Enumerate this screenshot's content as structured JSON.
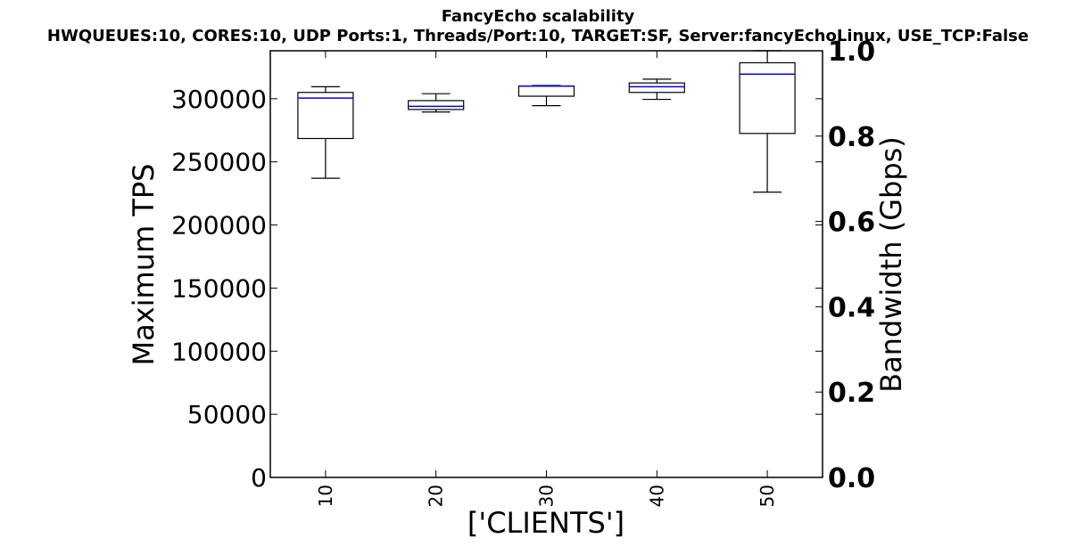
{
  "chart_data": {
    "type": "box",
    "title": "FancyEcho scalability",
    "subtitle": "HWQUEUES:10, CORES:10, UDP Ports:1, Threads/Port:10, TARGET:SF, Server:fancyEchoLinux, USE_TCP:False",
    "xlabel": "['CLIENTS']",
    "ylabel": "Maximum TPS",
    "y2label": "Bandwidth (Gbps)",
    "categories": [
      "10",
      "20",
      "30",
      "40",
      "50"
    ],
    "ylim": [
      0,
      338000
    ],
    "y2lim": [
      0.0,
      1.0
    ],
    "yticks": [
      "0",
      "50000",
      "100000",
      "150000",
      "200000",
      "250000",
      "300000"
    ],
    "y2ticks": [
      "0.0",
      "0.2",
      "0.4",
      "0.6",
      "0.8",
      "1.0"
    ],
    "boxes": [
      {
        "category": "10",
        "whisker_low": 237000,
        "q1": 268500,
        "median": 300500,
        "q3": 305000,
        "whisker_high": 309500
      },
      {
        "category": "20",
        "whisker_low": 289500,
        "q1": 291500,
        "median": 294000,
        "q3": 298500,
        "whisker_high": 304000
      },
      {
        "category": "30",
        "whisker_low": 294500,
        "q1": 302000,
        "median": 310000,
        "q3": 310000,
        "whisker_high": 310500
      },
      {
        "category": "40",
        "whisker_low": 299500,
        "q1": 305000,
        "median": 309500,
        "q3": 312500,
        "whisker_high": 315500
      },
      {
        "category": "50",
        "whisker_low": 226000,
        "q1": 272500,
        "median": 319500,
        "q3": 328500,
        "whisker_high": 338000
      }
    ],
    "colors": {
      "box": "#000000",
      "median": "#0000ff",
      "background": "#ffffff"
    },
    "grid": false,
    "legend": "none"
  }
}
